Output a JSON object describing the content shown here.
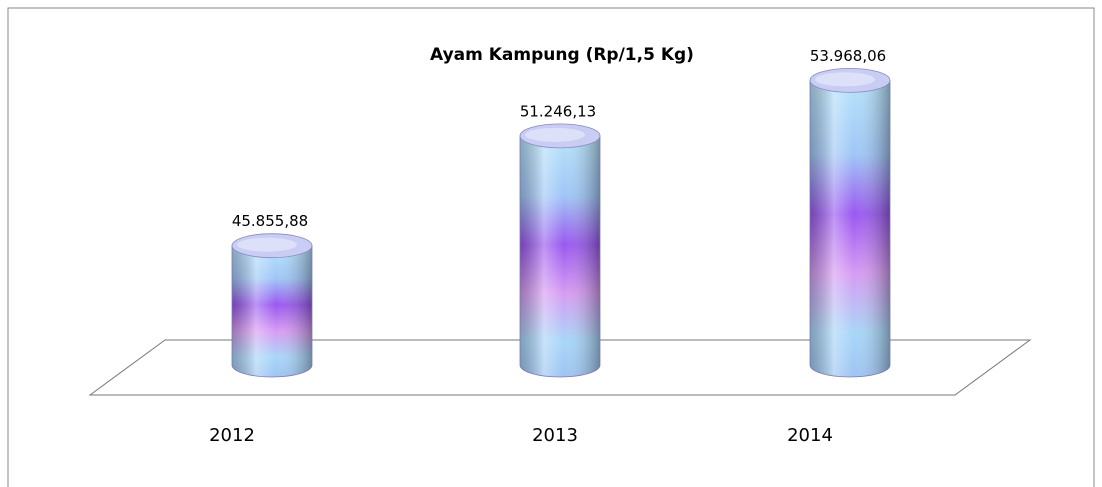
{
  "chart_data": {
    "type": "bar",
    "title": "Ayam Kampung (Rp/1,5 Kg)",
    "categories": [
      "2012",
      "2013",
      "2014"
    ],
    "values": [
      45855.88,
      51246.13,
      53968.06
    ],
    "value_labels": [
      "45.855,88",
      "51.246,13",
      "53.968,06"
    ],
    "ylim": [
      40000,
      56000
    ]
  }
}
